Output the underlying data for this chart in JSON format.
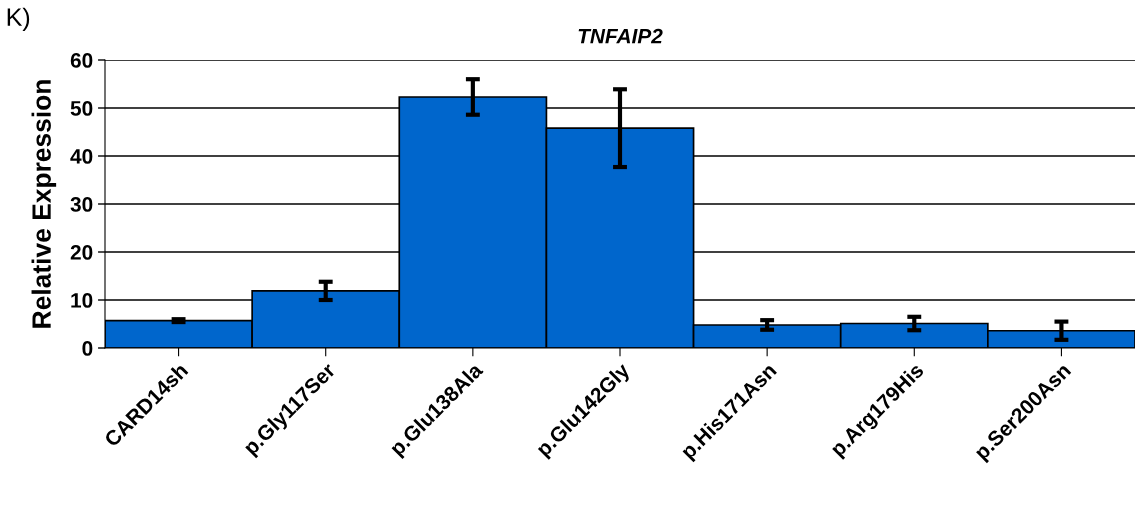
{
  "chart_data": {
    "type": "bar",
    "title": "TNFAIP2",
    "ylabel": "Relative Expression",
    "categories": [
      "CARD14sh",
      "p.Gly117Ser",
      "p.Glu138Ala",
      "p.Glu142Gly",
      "p.His171Asn",
      "p.Arg179His",
      "p.Ser200Asn"
    ],
    "values": [
      5.7,
      11.9,
      52.3,
      45.8,
      4.8,
      5.1,
      3.6
    ],
    "errors": [
      0.3,
      1.9,
      3.7,
      8.1,
      1.0,
      1.4,
      1.9
    ],
    "color": "#0066cc",
    "ylim": [
      0,
      60
    ],
    "yticks": [
      0,
      10,
      20,
      30,
      40,
      50,
      60
    ],
    "grid": "y",
    "annotations": [
      "K)"
    ]
  }
}
